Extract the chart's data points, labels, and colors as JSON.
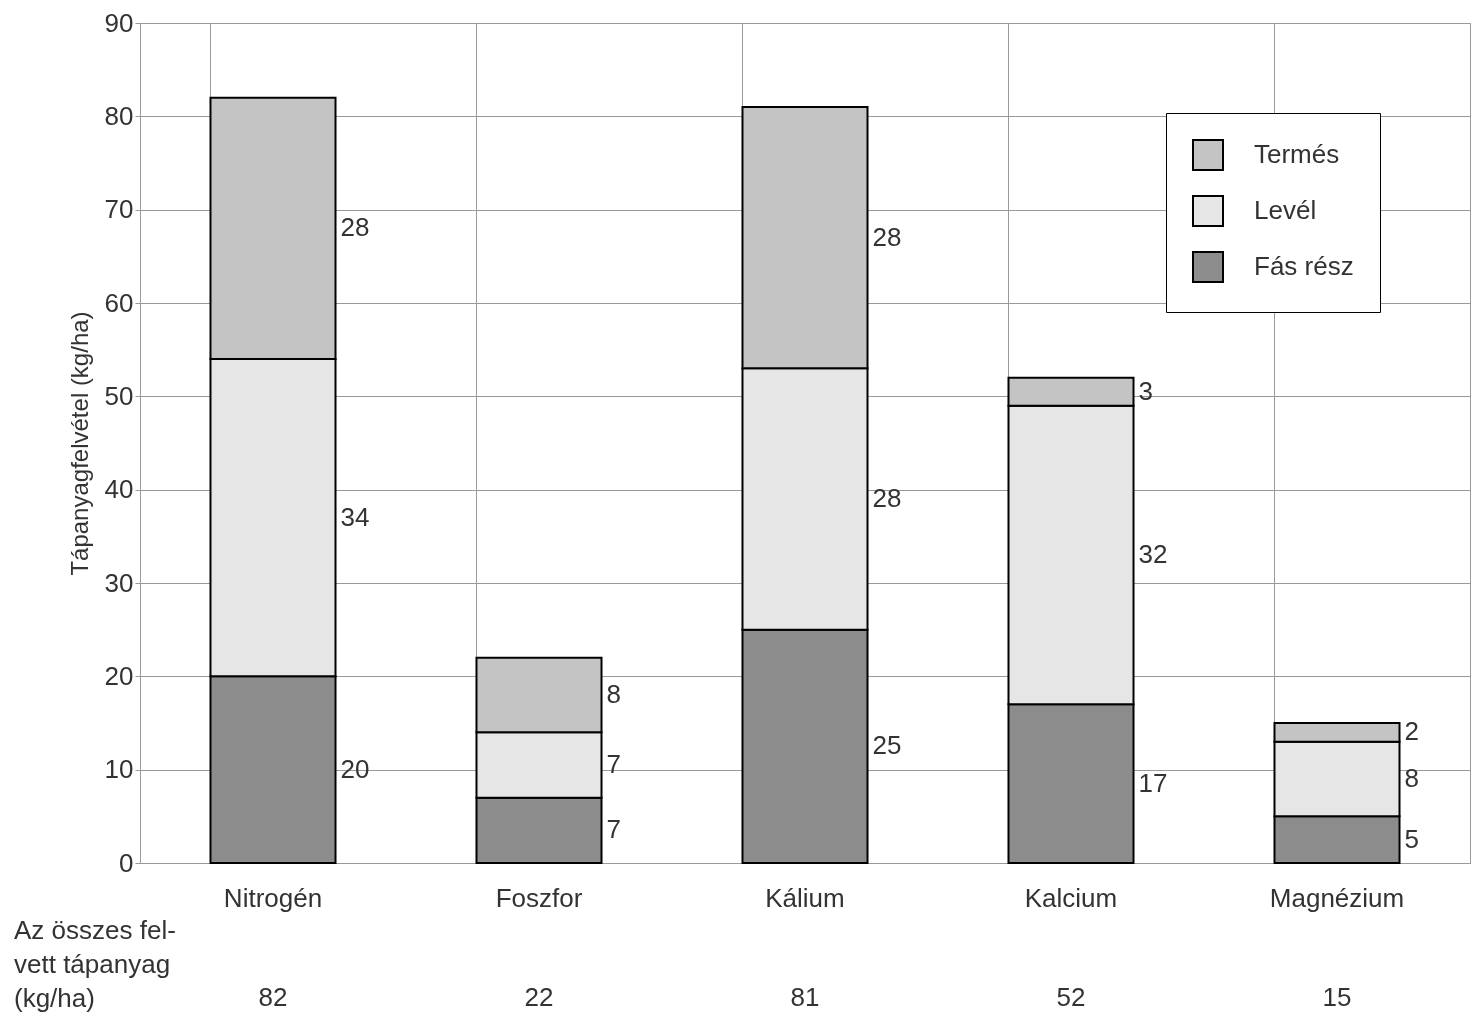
{
  "chart_data": {
    "type": "bar",
    "stacked": true,
    "ylabel": "Tápanyagfelvétel (kg/ha)",
    "categories": [
      "Nitrogén",
      "Foszfor",
      "Kálium",
      "Kalcium",
      "Magnézium"
    ],
    "series": [
      {
        "name": "Fás rész",
        "color": "#8c8c8c",
        "values": [
          20,
          7,
          25,
          17,
          5
        ]
      },
      {
        "name": "Levél",
        "color": "#e6e6e6",
        "values": [
          34,
          7,
          28,
          32,
          8
        ]
      },
      {
        "name": "Termés",
        "color": "#c4c4c4",
        "values": [
          28,
          8,
          28,
          3,
          2
        ]
      }
    ],
    "ylim": [
      0,
      90
    ],
    "yticks": [
      0,
      10,
      20,
      30,
      40,
      50,
      60,
      70,
      80,
      90
    ],
    "grid": true,
    "legend": "top right",
    "data_labels": true,
    "annotations": [
      "Az összes fel-\nvett tápanyag\n(kg/ha)",
      "82",
      "22",
      "81",
      "52",
      "15"
    ]
  }
}
